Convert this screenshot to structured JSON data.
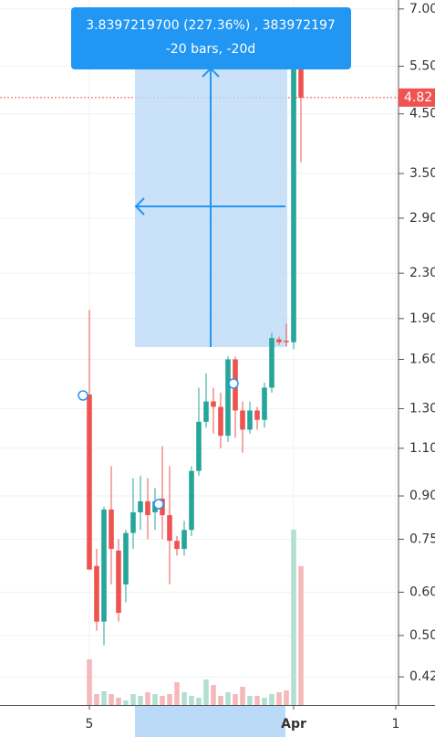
{
  "chart_data": {
    "type": "candlestick",
    "x": [
      0,
      1,
      2,
      3,
      4,
      5,
      6,
      7,
      8,
      9,
      10,
      11,
      12,
      13,
      14,
      15,
      16,
      17,
      18,
      19,
      20,
      21,
      22,
      23,
      24,
      25,
      26,
      27,
      28,
      29
    ],
    "open": [
      1.38,
      0.67,
      0.53,
      0.85,
      0.715,
      0.62,
      0.77,
      0.84,
      0.88,
      0.84,
      0.89,
      0.83,
      0.745,
      0.72,
      0.78,
      1.0,
      1.23,
      1.34,
      1.31,
      1.16,
      1.6,
      1.29,
      1.19,
      1.29,
      1.24,
      1.42,
      1.74,
      1.73,
      1.72,
      5.56
    ],
    "high": [
      1.97,
      0.72,
      0.86,
      1.02,
      0.75,
      0.78,
      0.97,
      0.98,
      0.97,
      0.93,
      1.11,
      1.02,
      0.76,
      0.81,
      1.02,
      1.42,
      1.51,
      1.42,
      1.39,
      1.62,
      1.62,
      1.34,
      1.34,
      1.31,
      1.45,
      1.79,
      1.76,
      1.86,
      6.24,
      5.56
    ],
    "low": [
      0.66,
      0.51,
      0.48,
      0.62,
      0.53,
      0.575,
      0.72,
      0.78,
      0.75,
      0.78,
      0.75,
      0.62,
      0.7,
      0.7,
      0.76,
      0.98,
      1.2,
      1.17,
      1.1,
      1.13,
      1.15,
      1.08,
      1.17,
      1.19,
      1.2,
      1.39,
      1.7,
      1.69,
      1.67,
      3.67
    ],
    "close": [
      0.66,
      0.53,
      0.85,
      0.72,
      0.55,
      0.77,
      0.84,
      0.88,
      0.83,
      0.88,
      0.83,
      0.745,
      0.72,
      0.78,
      1.0,
      1.23,
      1.34,
      1.31,
      1.16,
      1.6,
      1.29,
      1.19,
      1.29,
      1.24,
      1.42,
      1.75,
      1.72,
      1.72,
      5.9,
      4.82
    ],
    "volume": [
      50,
      12,
      15,
      12,
      8,
      5,
      12,
      10,
      14,
      12,
      10,
      12,
      25,
      14,
      10,
      8,
      28,
      22,
      10,
      14,
      12,
      20,
      10,
      10,
      8,
      12,
      14,
      16,
      192,
      152
    ],
    "up_color": "#26a69a",
    "down_color": "#ef5350",
    "volume_up_color": "#b3dfd2",
    "volume_down_color": "#f6b9bb",
    "log_scale": true,
    "grid": true,
    "ylim": [
      0.373,
      7.27
    ],
    "yticks": [
      {
        "value": 7,
        "label": "7.00"
      },
      {
        "value": 5.5,
        "label": "5.50"
      },
      {
        "value": 4.5,
        "label": "4.50"
      },
      {
        "value": 3.5,
        "label": "3.50"
      },
      {
        "value": 2.9,
        "label": "2.90"
      },
      {
        "value": 2.3,
        "label": "2.30"
      },
      {
        "value": 1.9,
        "label": "1.90"
      },
      {
        "value": 1.6,
        "label": "1.60"
      },
      {
        "value": 1.3,
        "label": "1.30"
      },
      {
        "value": 1.1,
        "label": "1.10"
      },
      {
        "value": 0.9,
        "label": "0.90"
      },
      {
        "value": 0.75,
        "label": "0.75"
      },
      {
        "value": 0.6,
        "label": "0.60"
      },
      {
        "value": 0.5,
        "label": "0.50"
      },
      {
        "value": 0.42,
        "label": "0.42"
      }
    ],
    "xlim": [
      -12.25,
      42.375
    ],
    "xticks": [
      {
        "value": 0,
        "label": "5"
      },
      {
        "value": 28,
        "label": "Apr"
      },
      {
        "value": 42,
        "label": "1"
      }
    ],
    "annotations": [
      "3.8397219700 (227.36%) , 383972197",
      "-20 bars, -20d"
    ]
  }
}
